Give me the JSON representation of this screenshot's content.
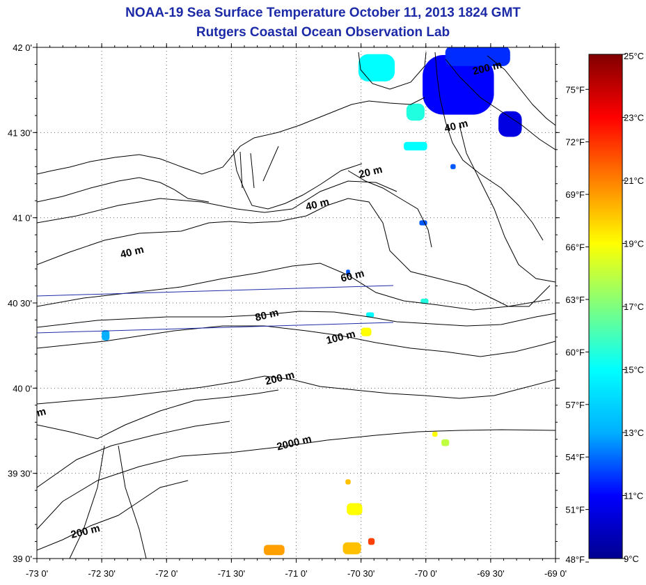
{
  "title": "NOAA-19 Sea Surface Temperature October 11, 2013 1824 GMT",
  "subtitle": "Rutgers Coastal Ocean Observation Lab",
  "map": {
    "lon_range": [
      -73.0,
      -69.0
    ],
    "lat_range": [
      39.0,
      42.0
    ],
    "x_ticks": [
      {
        "lon": -73.0,
        "label": "-73 0'"
      },
      {
        "lon": -72.5,
        "label": "-72 30'"
      },
      {
        "lon": -72.0,
        "label": "-72 0'"
      },
      {
        "lon": -71.5,
        "label": "-71 30'"
      },
      {
        "lon": -71.0,
        "label": "-71 0'"
      },
      {
        "lon": -70.5,
        "label": "-70 30'"
      },
      {
        "lon": -70.0,
        "label": "-70 0'"
      },
      {
        "lon": -69.5,
        "label": "-69 30'"
      },
      {
        "lon": -69.0,
        "label": "-69 0'"
      }
    ],
    "y_ticks": [
      {
        "lat": 42.0,
        "label": "42 0'"
      },
      {
        "lat": 41.5,
        "label": "41 30'"
      },
      {
        "lat": 41.0,
        "label": "41 0'"
      },
      {
        "lat": 40.5,
        "label": "40 30'"
      },
      {
        "lat": 40.0,
        "label": "40 0'"
      },
      {
        "lat": 39.5,
        "label": "39 30'"
      },
      {
        "lat": 39.0,
        "label": "39 0'"
      }
    ],
    "grid": "dotted",
    "contour_labels": [
      {
        "text": "20 m",
        "lon": -70.42,
        "lat": 41.25
      },
      {
        "text": "40 m",
        "lon": -70.83,
        "lat": 41.06
      },
      {
        "text": "40 m",
        "lon": -72.26,
        "lat": 40.78
      },
      {
        "text": "40 m",
        "lon": -69.76,
        "lat": 41.52
      },
      {
        "text": "60 m",
        "lon": -70.56,
        "lat": 40.64
      },
      {
        "text": "80 m",
        "lon": -71.22,
        "lat": 40.41
      },
      {
        "text": "100 m",
        "lon": -70.65,
        "lat": 40.28
      },
      {
        "text": "200 m",
        "lon": -71.12,
        "lat": 40.04
      },
      {
        "text": "2000 m",
        "lon": -71.01,
        "lat": 39.66
      },
      {
        "text": "200 m",
        "lon": -72.62,
        "lat": 39.14
      },
      {
        "text": "200 m",
        "lon": -69.52,
        "lat": 41.86
      },
      {
        "text": "m",
        "lon": -72.96,
        "lat": 39.84
      }
    ],
    "sst_patches": [
      {
        "lon": -70.38,
        "lat": 41.88,
        "w": 0.28,
        "h": 0.16,
        "temp_c": 15.0
      },
      {
        "lon": -70.08,
        "lat": 41.62,
        "w": 0.14,
        "h": 0.1,
        "temp_c": 15.5
      },
      {
        "lon": -69.75,
        "lat": 41.78,
        "w": 0.55,
        "h": 0.35,
        "temp_c": 11.0
      },
      {
        "lon": -69.6,
        "lat": 41.95,
        "w": 0.5,
        "h": 0.12,
        "temp_c": 11.5
      },
      {
        "lon": -69.35,
        "lat": 41.55,
        "w": 0.18,
        "h": 0.15,
        "temp_c": 10.5
      },
      {
        "lon": -70.08,
        "lat": 41.42,
        "w": 0.18,
        "h": 0.05,
        "temp_c": 15.0
      },
      {
        "lon": -70.02,
        "lat": 40.97,
        "w": 0.06,
        "h": 0.03,
        "temp_c": 12.0
      },
      {
        "lon": -72.47,
        "lat": 40.31,
        "w": 0.06,
        "h": 0.06,
        "temp_c": 13.0
      },
      {
        "lon": -70.43,
        "lat": 40.43,
        "w": 0.06,
        "h": 0.03,
        "temp_c": 15.0
      },
      {
        "lon": -70.46,
        "lat": 40.33,
        "w": 0.08,
        "h": 0.05,
        "temp_c": 19.0
      },
      {
        "lon": -70.01,
        "lat": 40.51,
        "w": 0.06,
        "h": 0.03,
        "temp_c": 15.5
      },
      {
        "lon": -70.6,
        "lat": 40.68,
        "w": 0.03,
        "h": 0.03,
        "temp_c": 12.0
      },
      {
        "lon": -69.93,
        "lat": 39.73,
        "w": 0.04,
        "h": 0.03,
        "temp_c": 19.0
      },
      {
        "lon": -69.85,
        "lat": 39.68,
        "w": 0.06,
        "h": 0.04,
        "temp_c": 18.0
      },
      {
        "lon": -70.55,
        "lat": 39.29,
        "w": 0.12,
        "h": 0.07,
        "temp_c": 19.0
      },
      {
        "lon": -70.6,
        "lat": 39.45,
        "w": 0.04,
        "h": 0.03,
        "temp_c": 20.0
      },
      {
        "lon": -71.17,
        "lat": 39.05,
        "w": 0.16,
        "h": 0.06,
        "temp_c": 20.5
      },
      {
        "lon": -70.57,
        "lat": 39.06,
        "w": 0.14,
        "h": 0.07,
        "temp_c": 20.0
      },
      {
        "lon": -70.42,
        "lat": 39.1,
        "w": 0.05,
        "h": 0.04,
        "temp_c": 22.0
      },
      {
        "lon": -69.79,
        "lat": 41.3,
        "w": 0.04,
        "h": 0.03,
        "temp_c": 12.0
      }
    ]
  },
  "colorbar": {
    "range_c": [
      9,
      25
    ],
    "celsius_ticks": [
      {
        "value": 25,
        "label": "25°C"
      },
      {
        "value": 23,
        "label": "23°C"
      },
      {
        "value": 21,
        "label": "21°C"
      },
      {
        "value": 19,
        "label": "19°C"
      },
      {
        "value": 17,
        "label": "17°C"
      },
      {
        "value": 15,
        "label": "15°C"
      },
      {
        "value": 13,
        "label": "13°C"
      },
      {
        "value": 11,
        "label": "11°C"
      },
      {
        "value": 9,
        "label": "9°C"
      }
    ],
    "fahrenheit_ticks": [
      {
        "value": 75,
        "label": "75°F"
      },
      {
        "value": 72,
        "label": "72°F"
      },
      {
        "value": 69,
        "label": "69°F"
      },
      {
        "value": 66,
        "label": "66°F"
      },
      {
        "value": 63,
        "label": "63°F"
      },
      {
        "value": 60,
        "label": "60°F"
      },
      {
        "value": 57,
        "label": "57°F"
      },
      {
        "value": 54,
        "label": "54°F"
      },
      {
        "value": 51,
        "label": "51°F"
      },
      {
        "value": 48,
        "label": "48°F"
      }
    ],
    "colormap": [
      "#00008f",
      "#0000ff",
      "#00b0ff",
      "#00ffff",
      "#7fff7f",
      "#ffff00",
      "#ff8000",
      "#ff0000",
      "#800000"
    ]
  },
  "colors": {
    "title": "#1c2aa8",
    "coastline": "#000000",
    "track_line": "#1c2aa8"
  }
}
